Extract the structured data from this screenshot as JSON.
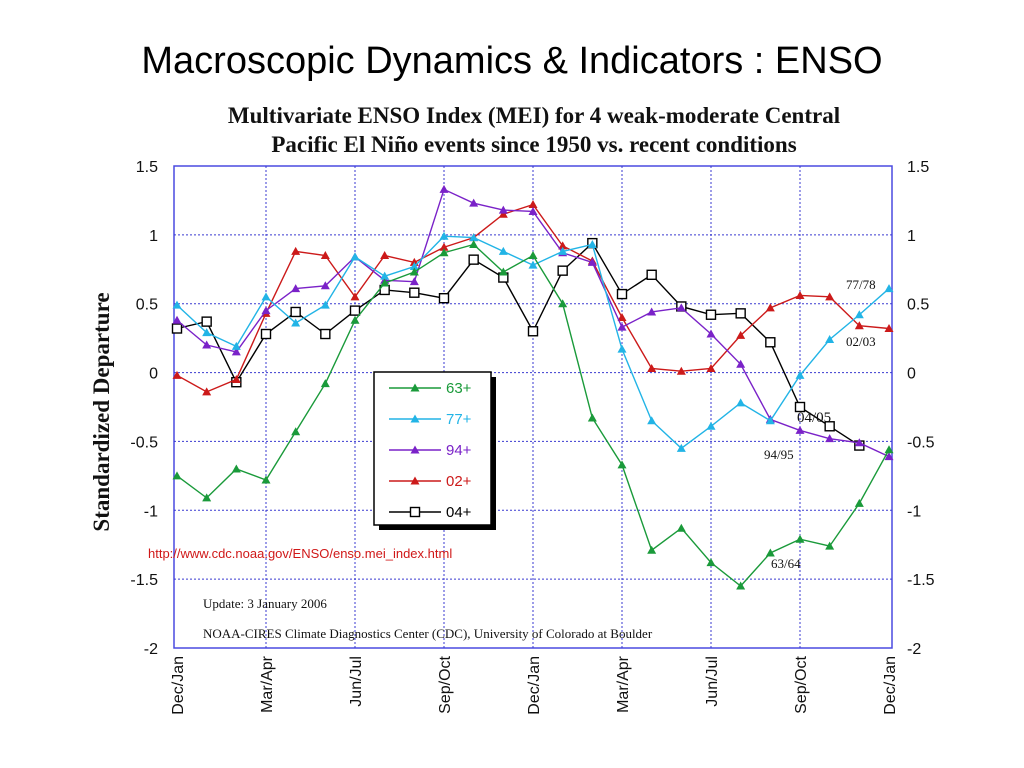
{
  "slide": {
    "title": "Macroscopic Dynamics & Indicators : ENSO"
  },
  "chart_data": {
    "type": "line",
    "title": "Multivariate ENSO Index (MEI) for 4 weak-moderate Central Pacific El Niño events since 1950 vs. recent conditions",
    "title_lines": [
      "Multivariate ENSO Index (MEI) for 4 weak-moderate Central",
      "Pacific El Niño events since 1950 vs. recent conditions"
    ],
    "ylabel": "Standardized Departure",
    "xlabel": "",
    "ylim": [
      -2,
      1.5
    ],
    "yticks": [
      "1.5",
      "1",
      "0.5",
      "0",
      "-0.5",
      "-1",
      "-1.5",
      "-2"
    ],
    "ytick_values": [
      1.5,
      1,
      0.5,
      0,
      -0.5,
      -1,
      -1.5,
      -2
    ],
    "x_count": 24,
    "x_tick_labels": [
      {
        "index": 0,
        "label": "Dec/Jan"
      },
      {
        "index": 3,
        "label": "Mar/Apr"
      },
      {
        "index": 6,
        "label": "Jun/Jul"
      },
      {
        "index": 9,
        "label": "Sep/Oct"
      },
      {
        "index": 12,
        "label": "Dec/Jan"
      },
      {
        "index": 15,
        "label": "Mar/Apr"
      },
      {
        "index": 18,
        "label": "Jun/Jul"
      },
      {
        "index": 21,
        "label": "Sep/Oct"
      },
      {
        "index": 24,
        "label": "Dec/Jan"
      }
    ],
    "grid": true,
    "legend_position": "center-left",
    "series": [
      {
        "name": "63+",
        "color": "#1a9a3a",
        "marker": "triangle",
        "values": [
          -0.75,
          -0.91,
          -0.7,
          -0.78,
          -0.43,
          -0.08,
          0.38,
          0.65,
          0.73,
          0.87,
          0.93,
          0.73,
          0.85,
          0.5,
          -0.33,
          -0.67,
          -1.29,
          -1.13,
          -1.38,
          -1.55,
          -1.31,
          -1.21,
          -1.26,
          -0.95,
          -0.56
        ]
      },
      {
        "name": "77+",
        "color": "#22b4e6",
        "marker": "triangle",
        "values": [
          0.49,
          0.29,
          0.19,
          0.55,
          0.36,
          0.49,
          0.84,
          0.7,
          0.77,
          0.99,
          0.98,
          0.88,
          0.78,
          0.88,
          0.93,
          0.17,
          -0.35,
          -0.55,
          -0.39,
          -0.22,
          -0.35,
          -0.02,
          0.24,
          0.42,
          0.61
        ]
      },
      {
        "name": "94+",
        "color": "#7a22c8",
        "marker": "triangle",
        "values": [
          0.38,
          0.2,
          0.15,
          0.45,
          0.61,
          0.63,
          0.84,
          0.67,
          0.66,
          1.33,
          1.23,
          1.18,
          1.17,
          0.87,
          0.8,
          0.33,
          0.44,
          0.47,
          0.28,
          0.06,
          -0.34,
          -0.42,
          -0.48,
          -0.51,
          -0.61
        ]
      },
      {
        "name": "02+",
        "color": "#cc1a1a",
        "marker": "triangle",
        "values": [
          -0.02,
          -0.14,
          -0.05,
          0.43,
          0.88,
          0.85,
          0.55,
          0.85,
          0.8,
          0.91,
          0.98,
          1.15,
          1.22,
          0.92,
          0.81,
          0.4,
          0.03,
          0.01,
          0.03,
          0.27,
          0.47,
          0.56,
          0.55,
          0.34,
          0.32
        ]
      },
      {
        "name": "04+",
        "color": "#000000",
        "marker": "square",
        "values": [
          0.32,
          0.37,
          -0.07,
          0.28,
          0.44,
          0.28,
          0.45,
          0.6,
          0.58,
          0.54,
          0.82,
          0.69,
          0.3,
          0.74,
          0.94,
          0.57,
          0.71,
          0.48,
          0.42,
          0.43,
          0.22,
          -0.25,
          -0.39,
          -0.53,
          null
        ]
      }
    ],
    "end_labels": [
      "77/78",
      "02/03",
      "04/05",
      "94/95",
      "63/64"
    ],
    "annotations": {
      "url": "http://www.cdc.noaa.gov/ENSO/enso.mei_index.html",
      "update": "Update: 3 January 2006",
      "credit": "NOAA-CIRES Climate Diagnostics Center (CDC), University of Colorado at Boulder"
    }
  }
}
